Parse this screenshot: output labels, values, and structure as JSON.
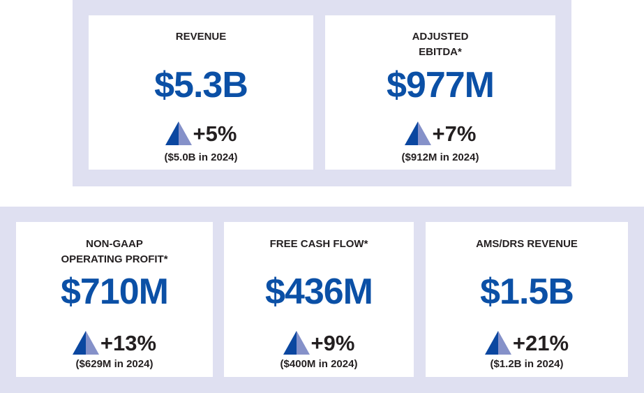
{
  "colors": {
    "panel": "#dfe0f1",
    "value": "#0b50a6",
    "triangle_dark": "#0b47a0",
    "triangle_light": "#8591c9",
    "text": "#231f20"
  },
  "metrics": [
    {
      "title_lines": [
        "REVENUE"
      ],
      "value": "$5.3B",
      "change": "+5%",
      "prior": "($5.0B in 2024)",
      "trend_icon": "up-triangle-icon"
    },
    {
      "title_lines": [
        "ADJUSTED",
        "EBITDA*"
      ],
      "value": "$977M",
      "change": "+7%",
      "prior": "($912M in 2024)",
      "trend_icon": "up-triangle-icon"
    },
    {
      "title_lines": [
        "NON-GAAP",
        "OPERATING PROFIT*"
      ],
      "value": "$710M",
      "change": "+13%",
      "prior": "($629M in 2024)",
      "trend_icon": "up-triangle-icon"
    },
    {
      "title_lines": [
        "FREE CASH FLOW*"
      ],
      "value": "$436M",
      "change": "+9%",
      "prior": "($400M in 2024)",
      "trend_icon": "up-triangle-icon"
    },
    {
      "title_lines": [
        "AMS/DRS REVENUE"
      ],
      "value": "$1.5B",
      "change": "+21%",
      "prior": "($1.2B in 2024)",
      "trend_icon": "up-triangle-icon"
    }
  ]
}
